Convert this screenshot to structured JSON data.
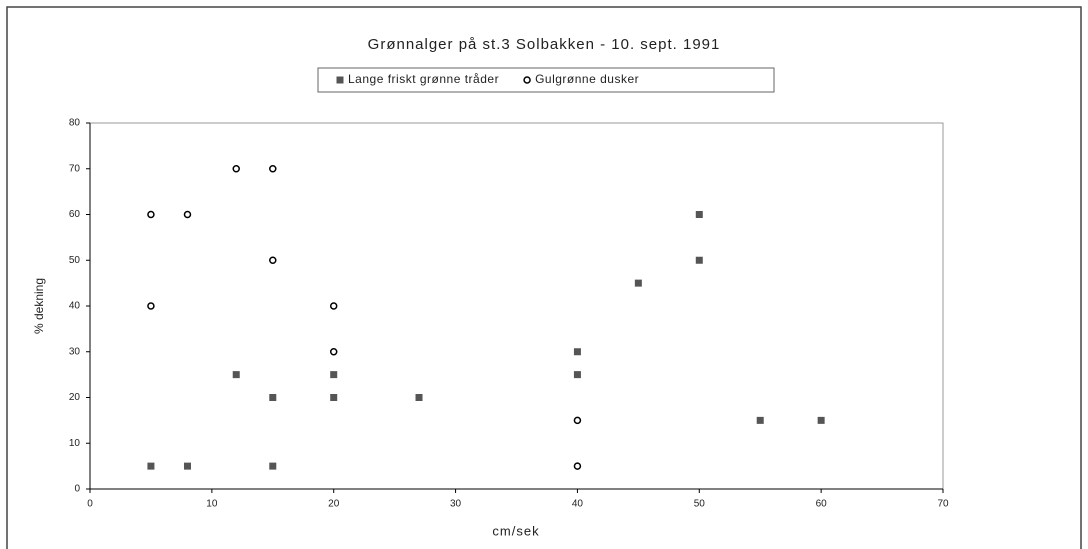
{
  "chart_data": {
    "type": "scatter",
    "title": "Grønnalger på st.3 Solbakken - 10. sept. 1991",
    "xlabel": "cm/sek",
    "ylabel": "% dekning",
    "xlim": [
      0,
      70
    ],
    "xticks": [
      0,
      10,
      20,
      30,
      40,
      50,
      60,
      70
    ],
    "ylim": [
      0,
      80
    ],
    "yticks": [
      0,
      10,
      20,
      30,
      40,
      50,
      60,
      70,
      80
    ],
    "grid": false,
    "legend": "top",
    "series": [
      {
        "name": "Lange friskt grønne tråder",
        "color": "#555555",
        "marker": "square",
        "x": [
          5,
          8,
          12,
          15,
          15,
          20,
          20,
          27,
          40,
          40,
          45,
          50,
          50,
          55,
          60
        ],
        "values": [
          5,
          5,
          25,
          20,
          5,
          20,
          25,
          20,
          30,
          25,
          45,
          60,
          50,
          15,
          15
        ]
      },
      {
        "name": "Gulgrønne dusker",
        "color": "#000000",
        "marker": "circle",
        "x": [
          5,
          5,
          8,
          12,
          15,
          15,
          20,
          20,
          40,
          40
        ],
        "values": [
          60,
          40,
          60,
          70,
          70,
          50,
          40,
          30,
          15,
          5
        ]
      }
    ]
  }
}
